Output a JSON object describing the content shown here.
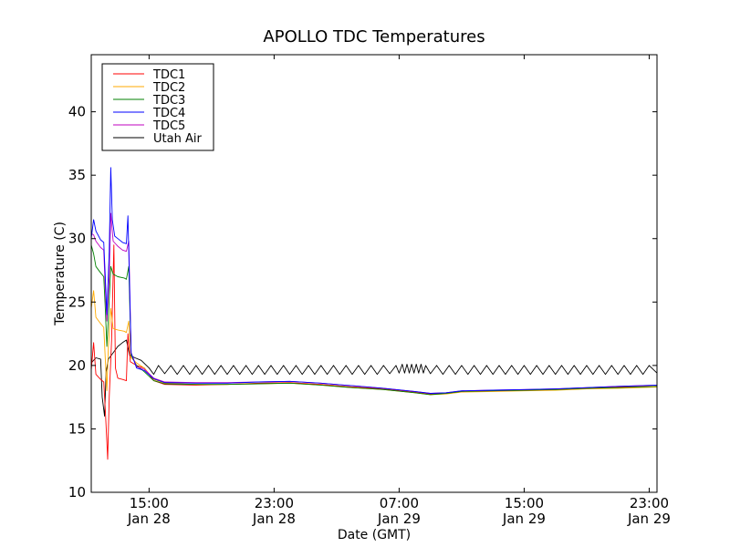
{
  "chart_data": {
    "type": "line",
    "title": "APOLLO TDC Temperatures",
    "xlabel": "Date (GMT)",
    "ylabel": "Temperature (C)",
    "ylim": [
      10,
      44.5
    ],
    "xlim_hours": [
      11.3,
      47.5
    ],
    "x_unit": "hours since Jan 28 00:00 GMT",
    "yticks": [
      10,
      15,
      20,
      25,
      30,
      35,
      40
    ],
    "xticks": [
      {
        "hours": 15,
        "time": "15:00",
        "date": "Jan 28"
      },
      {
        "hours": 23,
        "time": "23:00",
        "date": "Jan 28"
      },
      {
        "hours": 31,
        "time": "07:00",
        "date": "Jan 29"
      },
      {
        "hours": 39,
        "time": "15:00",
        "date": "Jan 29"
      },
      {
        "hours": 47,
        "time": "23:00",
        "date": "Jan 29"
      }
    ],
    "legend_position": "top-left",
    "series": [
      {
        "name": "TDC1",
        "color": "#ff0000",
        "points": [
          [
            11.3,
            19.6
          ],
          [
            11.45,
            21.8
          ],
          [
            11.6,
            19.3
          ],
          [
            11.9,
            18.9
          ],
          [
            12.1,
            18.7
          ],
          [
            12.2,
            16.5
          ],
          [
            12.3,
            14.0
          ],
          [
            12.35,
            12.6
          ],
          [
            12.45,
            17.5
          ],
          [
            12.6,
            22.0
          ],
          [
            12.75,
            29.5
          ],
          [
            12.85,
            19.8
          ],
          [
            13.0,
            19.0
          ],
          [
            13.3,
            18.9
          ],
          [
            13.55,
            18.8
          ],
          [
            13.65,
            22.5
          ],
          [
            13.8,
            20.3
          ],
          [
            14.2,
            20.0
          ],
          [
            14.7,
            19.8
          ],
          [
            15.3,
            18.8
          ],
          [
            16.0,
            18.5
          ],
          [
            18.0,
            18.45
          ],
          [
            20.0,
            18.5
          ],
          [
            22.0,
            18.6
          ],
          [
            24.0,
            18.65
          ],
          [
            26.0,
            18.5
          ],
          [
            28.0,
            18.3
          ],
          [
            30.0,
            18.15
          ],
          [
            32.0,
            17.9
          ],
          [
            33.0,
            17.75
          ],
          [
            34.0,
            17.8
          ],
          [
            35.0,
            17.95
          ],
          [
            37.0,
            18.0
          ],
          [
            39.0,
            18.05
          ],
          [
            41.0,
            18.1
          ],
          [
            43.0,
            18.2
          ],
          [
            45.0,
            18.3
          ],
          [
            47.5,
            18.35
          ]
        ]
      },
      {
        "name": "TDC2",
        "color": "#ffaa00",
        "points": [
          [
            11.3,
            24.5
          ],
          [
            11.45,
            25.9
          ],
          [
            11.6,
            23.8
          ],
          [
            11.9,
            23.3
          ],
          [
            12.1,
            23.0
          ],
          [
            12.2,
            20.5
          ],
          [
            12.3,
            18.0
          ],
          [
            12.4,
            21.5
          ],
          [
            12.55,
            24.5
          ],
          [
            12.7,
            22.9
          ],
          [
            13.0,
            22.8
          ],
          [
            13.4,
            22.7
          ],
          [
            13.55,
            22.6
          ],
          [
            13.7,
            23.5
          ],
          [
            13.85,
            20.6
          ],
          [
            14.2,
            20.2
          ],
          [
            14.7,
            19.8
          ],
          [
            15.3,
            18.9
          ],
          [
            16.0,
            18.6
          ],
          [
            18.0,
            18.5
          ],
          [
            20.0,
            18.5
          ],
          [
            22.0,
            18.55
          ],
          [
            24.0,
            18.6
          ],
          [
            26.0,
            18.45
          ],
          [
            28.0,
            18.25
          ],
          [
            30.0,
            18.1
          ],
          [
            32.0,
            17.85
          ],
          [
            33.0,
            17.7
          ],
          [
            34.0,
            17.75
          ],
          [
            35.0,
            17.9
          ],
          [
            37.0,
            17.95
          ],
          [
            39.0,
            18.0
          ],
          [
            41.0,
            18.05
          ],
          [
            43.0,
            18.15
          ],
          [
            45.0,
            18.2
          ],
          [
            47.5,
            18.3
          ]
        ]
      },
      {
        "name": "TDC3",
        "color": "#008000",
        "points": [
          [
            11.3,
            29.5
          ],
          [
            11.45,
            28.8
          ],
          [
            11.6,
            27.8
          ],
          [
            11.9,
            27.3
          ],
          [
            12.1,
            27.0
          ],
          [
            12.2,
            24.5
          ],
          [
            12.3,
            21.5
          ],
          [
            12.4,
            23.8
          ],
          [
            12.55,
            27.8
          ],
          [
            12.7,
            27.2
          ],
          [
            13.0,
            27.0
          ],
          [
            13.4,
            26.9
          ],
          [
            13.55,
            26.8
          ],
          [
            13.7,
            27.8
          ],
          [
            13.85,
            20.8
          ],
          [
            14.2,
            20.0
          ],
          [
            14.7,
            19.5
          ],
          [
            15.3,
            18.8
          ],
          [
            16.0,
            18.55
          ],
          [
            18.0,
            18.5
          ],
          [
            20.0,
            18.5
          ],
          [
            22.0,
            18.55
          ],
          [
            24.0,
            18.6
          ],
          [
            26.0,
            18.45
          ],
          [
            28.0,
            18.25
          ],
          [
            30.0,
            18.1
          ],
          [
            32.0,
            17.85
          ],
          [
            33.0,
            17.7
          ],
          [
            34.0,
            17.8
          ],
          [
            35.0,
            17.95
          ],
          [
            37.0,
            18.0
          ],
          [
            39.0,
            18.05
          ],
          [
            41.0,
            18.1
          ],
          [
            43.0,
            18.2
          ],
          [
            45.0,
            18.25
          ],
          [
            47.5,
            18.35
          ]
        ]
      },
      {
        "name": "TDC4",
        "color": "#0000ff",
        "points": [
          [
            11.3,
            30.0
          ],
          [
            11.45,
            31.5
          ],
          [
            11.6,
            30.6
          ],
          [
            11.9,
            29.9
          ],
          [
            12.1,
            29.7
          ],
          [
            12.2,
            27.0
          ],
          [
            12.3,
            24.0
          ],
          [
            12.45,
            29.0
          ],
          [
            12.55,
            35.6
          ],
          [
            12.65,
            31.5
          ],
          [
            12.8,
            30.2
          ],
          [
            13.0,
            30.0
          ],
          [
            13.3,
            29.7
          ],
          [
            13.55,
            29.6
          ],
          [
            13.65,
            31.8
          ],
          [
            13.85,
            21.0
          ],
          [
            14.2,
            19.8
          ],
          [
            14.7,
            19.6
          ],
          [
            15.3,
            18.95
          ],
          [
            16.0,
            18.65
          ],
          [
            18.0,
            18.6
          ],
          [
            20.0,
            18.6
          ],
          [
            22.0,
            18.7
          ],
          [
            24.0,
            18.75
          ],
          [
            26.0,
            18.6
          ],
          [
            28.0,
            18.4
          ],
          [
            30.0,
            18.2
          ],
          [
            32.0,
            17.95
          ],
          [
            33.0,
            17.8
          ],
          [
            34.0,
            17.85
          ],
          [
            35.0,
            18.0
          ],
          [
            37.0,
            18.05
          ],
          [
            39.0,
            18.1
          ],
          [
            41.0,
            18.15
          ],
          [
            43.0,
            18.25
          ],
          [
            45.0,
            18.35
          ],
          [
            47.5,
            18.45
          ]
        ]
      },
      {
        "name": "TDC5",
        "color": "#bf00bf",
        "points": [
          [
            11.3,
            30.4
          ],
          [
            11.45,
            30.3
          ],
          [
            11.6,
            29.8
          ],
          [
            11.9,
            29.3
          ],
          [
            12.1,
            29.1
          ],
          [
            12.2,
            26.0
          ],
          [
            12.3,
            23.5
          ],
          [
            12.45,
            27.0
          ],
          [
            12.55,
            32.0
          ],
          [
            12.7,
            29.8
          ],
          [
            13.0,
            29.4
          ],
          [
            13.3,
            29.1
          ],
          [
            13.55,
            29.0
          ],
          [
            13.7,
            29.8
          ],
          [
            13.85,
            21.0
          ],
          [
            14.2,
            19.9
          ],
          [
            14.7,
            19.7
          ],
          [
            15.3,
            19.0
          ],
          [
            16.0,
            18.7
          ],
          [
            18.0,
            18.65
          ],
          [
            20.0,
            18.65
          ],
          [
            22.0,
            18.7
          ],
          [
            24.0,
            18.75
          ],
          [
            26.0,
            18.6
          ],
          [
            28.0,
            18.4
          ],
          [
            30.0,
            18.2
          ],
          [
            32.0,
            17.95
          ],
          [
            33.0,
            17.8
          ],
          [
            34.0,
            17.85
          ],
          [
            35.0,
            18.0
          ],
          [
            37.0,
            18.05
          ],
          [
            39.0,
            18.1
          ],
          [
            41.0,
            18.15
          ],
          [
            43.0,
            18.25
          ],
          [
            45.0,
            18.35
          ],
          [
            47.5,
            18.45
          ]
        ]
      },
      {
        "name": "Utah Air",
        "color": "#000000",
        "points": [
          [
            11.3,
            20.2
          ],
          [
            11.6,
            20.6
          ],
          [
            11.9,
            20.5
          ],
          [
            12.0,
            17.5
          ],
          [
            12.15,
            16.0
          ],
          [
            12.25,
            19.5
          ],
          [
            12.4,
            20.5
          ],
          [
            12.7,
            21.0
          ],
          [
            13.0,
            21.5
          ],
          [
            13.3,
            21.8
          ],
          [
            13.55,
            22.0
          ],
          [
            13.75,
            20.8
          ],
          [
            14.1,
            20.6
          ],
          [
            14.5,
            20.4
          ],
          [
            15.0,
            19.8
          ],
          [
            15.3,
            19.3
          ],
          [
            15.6,
            20.0
          ],
          [
            16.0,
            19.35
          ],
          [
            16.4,
            20.0
          ],
          [
            16.8,
            19.3
          ],
          [
            17.2,
            20.0
          ],
          [
            17.6,
            19.3
          ],
          [
            18.0,
            20.0
          ],
          [
            18.4,
            19.3
          ],
          [
            18.8,
            20.0
          ],
          [
            19.2,
            19.3
          ],
          [
            19.6,
            20.0
          ],
          [
            20.0,
            19.3
          ],
          [
            20.4,
            20.0
          ],
          [
            20.8,
            19.3
          ],
          [
            21.2,
            20.0
          ],
          [
            21.6,
            19.3
          ],
          [
            22.0,
            20.0
          ],
          [
            22.4,
            19.3
          ],
          [
            22.8,
            20.0
          ],
          [
            23.2,
            19.3
          ],
          [
            23.6,
            20.0
          ],
          [
            24.0,
            19.3
          ],
          [
            24.4,
            20.0
          ],
          [
            24.8,
            19.3
          ],
          [
            25.2,
            20.0
          ],
          [
            25.6,
            19.3
          ],
          [
            26.0,
            20.0
          ],
          [
            26.4,
            19.3
          ],
          [
            26.8,
            20.0
          ],
          [
            27.2,
            19.3
          ],
          [
            27.6,
            20.0
          ],
          [
            28.0,
            19.3
          ],
          [
            28.4,
            20.0
          ],
          [
            28.8,
            19.3
          ],
          [
            29.2,
            20.0
          ],
          [
            29.6,
            19.3
          ],
          [
            30.0,
            20.0
          ],
          [
            30.4,
            19.35
          ],
          [
            30.8,
            20.0
          ],
          [
            31.0,
            19.4
          ],
          [
            31.2,
            20.1
          ],
          [
            31.35,
            19.4
          ],
          [
            31.5,
            20.1
          ],
          [
            31.65,
            19.4
          ],
          [
            31.8,
            20.1
          ],
          [
            31.95,
            19.4
          ],
          [
            32.1,
            20.1
          ],
          [
            32.25,
            19.4
          ],
          [
            32.4,
            20.1
          ],
          [
            32.55,
            19.4
          ],
          [
            32.7,
            20.0
          ],
          [
            33.0,
            19.35
          ],
          [
            33.4,
            20.0
          ],
          [
            33.8,
            19.3
          ],
          [
            34.2,
            20.0
          ],
          [
            34.6,
            19.3
          ],
          [
            35.0,
            20.0
          ],
          [
            35.4,
            19.3
          ],
          [
            35.8,
            20.0
          ],
          [
            36.2,
            19.3
          ],
          [
            36.6,
            20.0
          ],
          [
            37.0,
            19.3
          ],
          [
            37.4,
            20.0
          ],
          [
            37.8,
            19.3
          ],
          [
            38.2,
            20.0
          ],
          [
            38.6,
            19.3
          ],
          [
            39.0,
            20.0
          ],
          [
            39.4,
            19.3
          ],
          [
            39.8,
            20.0
          ],
          [
            40.2,
            19.3
          ],
          [
            40.6,
            20.0
          ],
          [
            41.0,
            19.3
          ],
          [
            41.4,
            20.0
          ],
          [
            41.8,
            19.3
          ],
          [
            42.2,
            20.0
          ],
          [
            42.6,
            19.3
          ],
          [
            43.0,
            20.0
          ],
          [
            43.4,
            19.3
          ],
          [
            43.8,
            20.0
          ],
          [
            44.2,
            19.3
          ],
          [
            44.6,
            20.0
          ],
          [
            45.0,
            19.3
          ],
          [
            45.4,
            20.0
          ],
          [
            45.8,
            19.3
          ],
          [
            46.2,
            20.0
          ],
          [
            46.6,
            19.3
          ],
          [
            47.0,
            20.0
          ],
          [
            47.5,
            19.4
          ]
        ]
      }
    ]
  }
}
